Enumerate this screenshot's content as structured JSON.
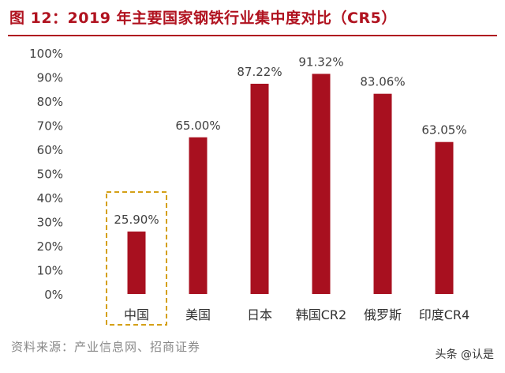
{
  "title": "图 12：2019 年主要国家钢铁行业集中度对比（CR5）",
  "source": "资料来源：产业信息网、招商证券",
  "watermark": "头条 @认是",
  "colors": {
    "bar": "#a8101f",
    "highlight_box": "#d4a017",
    "axis_text": "#404040"
  },
  "chart_data": {
    "type": "bar",
    "categories": [
      "中国",
      "美国",
      "日本",
      "韩国CR2",
      "俄罗斯",
      "印度CR4"
    ],
    "values": [
      25.9,
      65.0,
      87.22,
      91.32,
      83.06,
      63.05
    ],
    "value_labels": [
      "25.90%",
      "65.00%",
      "87.22%",
      "91.32%",
      "83.06%",
      "63.05%"
    ],
    "y_ticks": [
      "0%",
      "10%",
      "20%",
      "30%",
      "40%",
      "50%",
      "60%",
      "70%",
      "80%",
      "90%",
      "100%"
    ],
    "ylim": [
      0,
      100
    ],
    "highlighted_category": "中国",
    "grid": false,
    "xlabel": "",
    "ylabel": ""
  }
}
